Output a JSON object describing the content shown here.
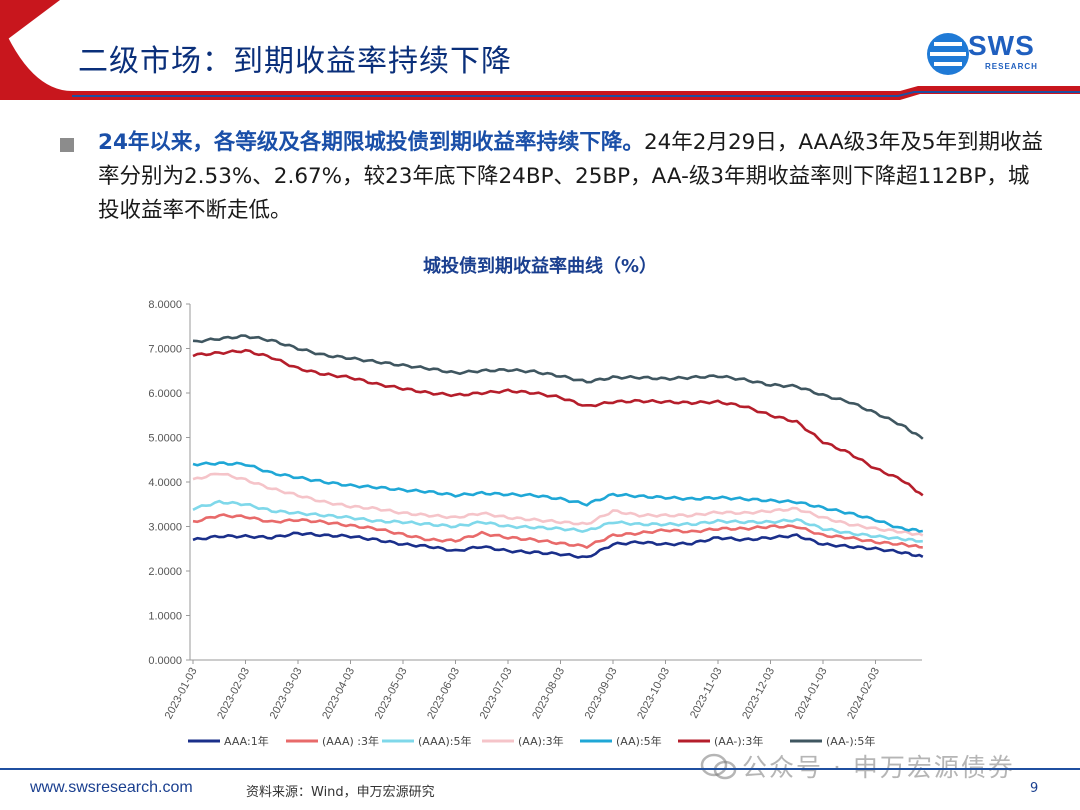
{
  "slide": {
    "title": "二级市场：到期收益率持续下降",
    "logo_text": "SWS",
    "logo_sub": "RESEARCH",
    "page_number": "9"
  },
  "bullet": {
    "highlight": "24年以来，各等级及各期限城投债到期收益率持续下降。",
    "body": "24年2月29日，AAA级3年及5年到期收益率分别为2.53%、2.67%，较23年底下降24BP、25BP，AA-级3年期收益率则下降超112BP，城投收益率不断走低。"
  },
  "footer": {
    "url": "www.swsresearch.com",
    "source": "资料来源：Wind，申万宏源研究",
    "watermark": "公众号 · 申万宏源债券"
  },
  "colors": {
    "header_red": "#c8161d",
    "header_blue": "#1f4fa0",
    "title_blue": "#0a2f7a"
  },
  "chart_data": {
    "type": "line",
    "title": "城投债到期收益率曲线（%）",
    "ylim": [
      0,
      8
    ],
    "yticks": [
      "0.0000",
      "1.0000",
      "2.0000",
      "3.0000",
      "4.0000",
      "5.0000",
      "6.0000",
      "7.0000",
      "8.0000"
    ],
    "xticks": [
      "2023-01-03",
      "2023-02-03",
      "2023-03-03",
      "2023-04-03",
      "2023-05-03",
      "2023-06-03",
      "2023-07-03",
      "2023-08-03",
      "2023-09-03",
      "2023-10-03",
      "2023-11-03",
      "2023-12-03",
      "2024-01-03",
      "2024-02-03"
    ],
    "grid": false,
    "legend_position": "bottom",
    "x_index": [
      0,
      0.5,
      1,
      1.5,
      2,
      2.5,
      3,
      3.5,
      4,
      4.5,
      5,
      5.5,
      6,
      6.5,
      7,
      7.5,
      8,
      8.5,
      9,
      9.5,
      10,
      10.5,
      11,
      11.5,
      12,
      12.5,
      13,
      13.5,
      13.9
    ],
    "series": [
      {
        "name": "AAA:1年",
        "color": "#1a2f8a",
        "values": [
          2.7,
          2.78,
          2.78,
          2.75,
          2.85,
          2.8,
          2.78,
          2.7,
          2.6,
          2.55,
          2.45,
          2.55,
          2.45,
          2.42,
          2.38,
          2.3,
          2.6,
          2.65,
          2.6,
          2.62,
          2.75,
          2.7,
          2.75,
          2.8,
          2.6,
          2.55,
          2.5,
          2.42,
          2.32
        ]
      },
      {
        "name": "(AAA) :3年",
        "color": "#e86a6a",
        "values": [
          3.1,
          3.25,
          3.22,
          3.1,
          3.15,
          3.1,
          3.02,
          2.95,
          2.82,
          2.7,
          2.68,
          2.85,
          2.75,
          2.7,
          2.62,
          2.55,
          2.8,
          2.85,
          2.92,
          2.88,
          2.95,
          2.95,
          3.0,
          3.0,
          2.8,
          2.75,
          2.65,
          2.6,
          2.53
        ]
      },
      {
        "name": "(AAA):5年",
        "color": "#7fd8ea",
        "values": [
          3.4,
          3.55,
          3.5,
          3.35,
          3.3,
          3.25,
          3.2,
          3.12,
          3.1,
          3.05,
          3.0,
          3.1,
          3.0,
          2.98,
          2.95,
          2.9,
          3.1,
          3.05,
          3.05,
          3.05,
          3.12,
          3.1,
          3.1,
          3.15,
          2.95,
          2.85,
          2.78,
          2.72,
          2.67
        ]
      },
      {
        "name": "(AA):3年",
        "color": "#f5c4c9",
        "values": [
          4.05,
          4.2,
          4.05,
          3.85,
          3.7,
          3.55,
          3.45,
          3.4,
          3.3,
          3.25,
          3.2,
          3.3,
          3.2,
          3.15,
          3.1,
          3.05,
          3.35,
          3.25,
          3.25,
          3.25,
          3.32,
          3.3,
          3.35,
          3.4,
          3.2,
          3.05,
          2.95,
          2.88,
          2.8
        ]
      },
      {
        "name": "(AA):5年",
        "color": "#1fa7d6",
        "values": [
          4.4,
          4.42,
          4.4,
          4.2,
          4.1,
          4.0,
          3.92,
          3.88,
          3.82,
          3.78,
          3.7,
          3.75,
          3.72,
          3.7,
          3.62,
          3.5,
          3.72,
          3.68,
          3.65,
          3.62,
          3.65,
          3.62,
          3.58,
          3.55,
          3.42,
          3.3,
          3.15,
          2.95,
          2.9
        ]
      },
      {
        "name": "(AA-):3年",
        "color": "#b51e2b",
        "values": [
          6.85,
          6.9,
          6.95,
          6.8,
          6.55,
          6.42,
          6.35,
          6.2,
          6.1,
          6.0,
          5.95,
          6.0,
          6.05,
          6.0,
          5.9,
          5.7,
          5.8,
          5.82,
          5.8,
          5.78,
          5.8,
          5.7,
          5.5,
          5.35,
          4.9,
          4.65,
          4.3,
          4.05,
          3.7
        ]
      },
      {
        "name": "(AA-):5年",
        "color": "#3f5660",
        "values": [
          7.15,
          7.22,
          7.28,
          7.18,
          7.0,
          6.85,
          6.78,
          6.7,
          6.62,
          6.55,
          6.45,
          6.5,
          6.52,
          6.48,
          6.38,
          6.25,
          6.35,
          6.35,
          6.32,
          6.35,
          6.38,
          6.3,
          6.18,
          6.15,
          5.95,
          5.8,
          5.55,
          5.28,
          4.97
        ]
      }
    ]
  }
}
